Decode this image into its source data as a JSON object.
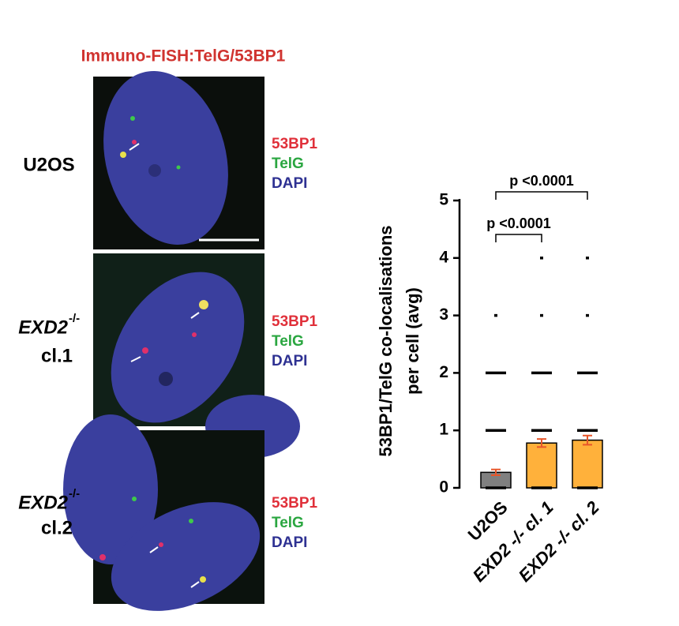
{
  "figure": {
    "title": "Immuno-FISH:TelG/53BP1",
    "panels": [
      {
        "name": "U2OS"
      },
      {
        "name": "EXD2",
        "superscript": "-/-",
        "clone": "cl.1"
      },
      {
        "name": "EXD2",
        "superscript": "-/-",
        "clone": "cl.2"
      }
    ],
    "channels": [
      "53BP1",
      "TelG",
      "DAPI"
    ]
  },
  "chart_data": {
    "type": "bar",
    "ylabel": [
      "53BP1/TelG co-localisations",
      "per cell (avg)"
    ],
    "categories": [
      "U2OS",
      "EXD2 -/- cl. 1",
      "EXD2 -/- cl. 2"
    ],
    "values": [
      0.27,
      0.78,
      0.83
    ],
    "errors": [
      0.05,
      0.07,
      0.08
    ],
    "colors": [
      "#808080",
      "#ffb13b",
      "#ffb13b"
    ],
    "error_color": "#e8562a",
    "points": [
      [
        0,
        1,
        2,
        3
      ],
      [
        0,
        1,
        2,
        3,
        4
      ],
      [
        0,
        1,
        2,
        3,
        4
      ]
    ],
    "annotations": [
      "p <0.0001",
      "p <0.0001"
    ],
    "ylim": [
      0,
      5
    ],
    "yticks": [
      0,
      1,
      2,
      3,
      4,
      5
    ]
  }
}
